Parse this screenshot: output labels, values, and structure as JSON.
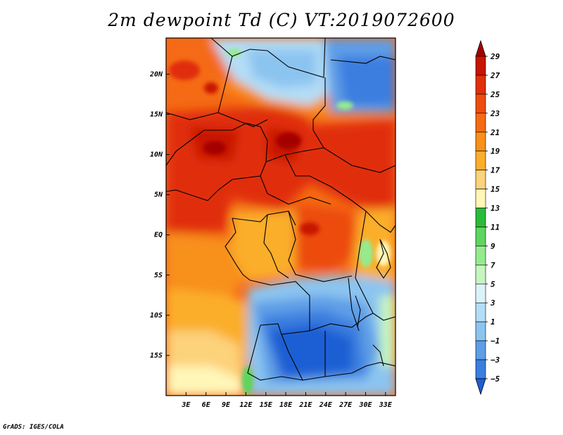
{
  "title": "2m dewpoint Td (C) VT:2019072600",
  "credit": "GrADS: IGES/COLA",
  "lat_ticks": [
    {
      "lat": 20,
      "label": "20N"
    },
    {
      "lat": 15,
      "label": "15N"
    },
    {
      "lat": 10,
      "label": "10N"
    },
    {
      "lat": 5,
      "label": "5N"
    },
    {
      "lat": 0,
      "label": "EQ"
    },
    {
      "lat": -5,
      "label": "5S"
    },
    {
      "lat": -10,
      "label": "10S"
    },
    {
      "lat": -15,
      "label": "15S"
    }
  ],
  "lon_ticks": [
    {
      "lon": 3,
      "label": "3E"
    },
    {
      "lon": 6,
      "label": "6E"
    },
    {
      "lon": 9,
      "label": "9E"
    },
    {
      "lon": 12,
      "label": "12E"
    },
    {
      "lon": 15,
      "label": "15E"
    },
    {
      "lon": 18,
      "label": "18E"
    },
    {
      "lon": 21,
      "label": "21E"
    },
    {
      "lon": 24,
      "label": "24E"
    },
    {
      "lon": 27,
      "label": "27E"
    },
    {
      "lon": 30,
      "label": "30E"
    },
    {
      "lon": 33,
      "label": "33E"
    }
  ],
  "map_extent": {
    "lon_min": 0,
    "lon_max": 34.5,
    "lat_min": -20,
    "lat_max": 24.5
  },
  "colorbar": {
    "labels": [
      "29",
      "27",
      "25",
      "23",
      "21",
      "19",
      "17",
      "15",
      "13",
      "11",
      "9",
      "7",
      "5",
      "3",
      "1",
      "−1",
      "−3",
      "−5"
    ],
    "colors": [
      "#a50000",
      "#c81400",
      "#e02e0a",
      "#ec4c10",
      "#f56a14",
      "#f8901a",
      "#fbae2c",
      "#fcd27a",
      "#fff6b8",
      "#2bba3a",
      "#5fd45f",
      "#96ea8e",
      "#c6f5c0",
      "#dcf2fb",
      "#b4ddf6",
      "#8cc4f0",
      "#5e9ee6",
      "#3a7ee0",
      "#1e5ed4"
    ]
  }
}
